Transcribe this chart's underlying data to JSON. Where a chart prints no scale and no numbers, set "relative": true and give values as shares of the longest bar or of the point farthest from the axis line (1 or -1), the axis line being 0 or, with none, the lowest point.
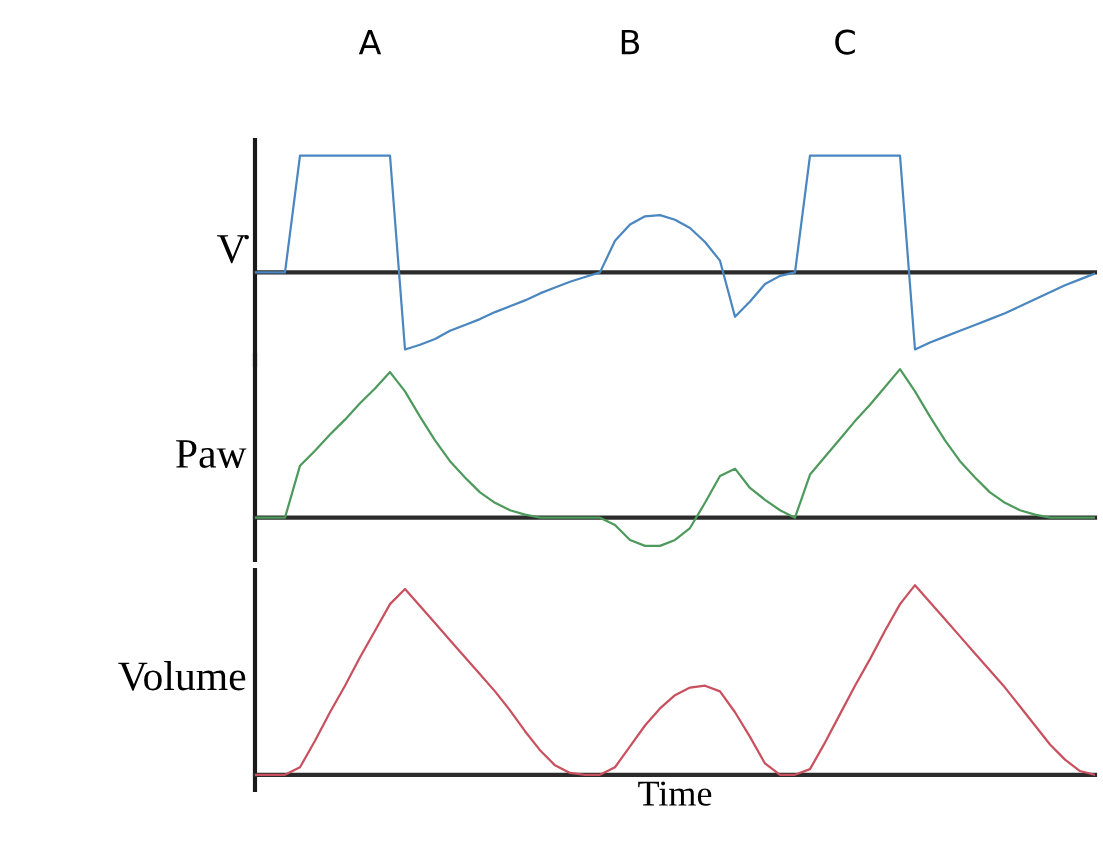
{
  "chart_data": [
    {
      "type": "line",
      "ylabel": "V̇",
      "relative": true,
      "tick_labels": false,
      "annotations": [
        "A",
        "B",
        "C"
      ],
      "categories": [
        null,
        null,
        null,
        null,
        null,
        null,
        null,
        null,
        null,
        null,
        null,
        null,
        null,
        null,
        null,
        null,
        null,
        null,
        null,
        null,
        null,
        null,
        null,
        null,
        null,
        null,
        null,
        null,
        null,
        null,
        null,
        null,
        null,
        null,
        null,
        null,
        null,
        null,
        null,
        null,
        null,
        null,
        null,
        null,
        null,
        null,
        null,
        null,
        null,
        null,
        null,
        null,
        null,
        null,
        null,
        null,
        null
      ],
      "series": [
        {
          "color": "#4a86c0",
          "values": [
            0,
            0,
            0,
            1,
            1,
            1,
            1,
            1,
            1,
            1,
            -0.66,
            -0.62,
            -0.57,
            -0.5,
            -0.45,
            -0.4,
            -0.34,
            -0.29,
            -0.24,
            -0.18,
            -0.13,
            -0.08,
            -0.04,
            0,
            0.27,
            0.41,
            0.48,
            0.49,
            0.45,
            0.38,
            0.26,
            0.1,
            -0.38,
            -0.25,
            -0.1,
            -0.03,
            0,
            1,
            1,
            1,
            1,
            1,
            1,
            1,
            -0.66,
            -0.6,
            -0.55,
            -0.5,
            -0.45,
            -0.4,
            -0.35,
            -0.29,
            -0.23,
            -0.17,
            -0.11,
            -0.06,
            -0.01
          ]
        }
      ]
    },
    {
      "type": "line",
      "ylabel": "Paw",
      "relative": true,
      "tick_labels": false,
      "categories": [
        null,
        null,
        null,
        null,
        null,
        null,
        null,
        null,
        null,
        null,
        null,
        null,
        null,
        null,
        null,
        null,
        null,
        null,
        null,
        null,
        null,
        null,
        null,
        null,
        null,
        null,
        null,
        null,
        null,
        null,
        null,
        null,
        null,
        null,
        null,
        null,
        null,
        null,
        null,
        null,
        null,
        null,
        null,
        null,
        null,
        null,
        null,
        null,
        null,
        null,
        null,
        null,
        null,
        null,
        null,
        null,
        null
      ],
      "series": [
        {
          "color": "#4e9a5c",
          "values": [
            0,
            0,
            0,
            0.35,
            0.45,
            0.56,
            0.66,
            0.77,
            0.87,
            0.98,
            0.85,
            0.68,
            0.52,
            0.38,
            0.27,
            0.17,
            0.1,
            0.05,
            0.02,
            0,
            0,
            0,
            0,
            0,
            -0.05,
            -0.15,
            -0.19,
            -0.19,
            -0.15,
            -0.07,
            0.1,
            0.28,
            0.33,
            0.2,
            0.12,
            0.05,
            0,
            0.29,
            0.41,
            0.53,
            0.65,
            0.76,
            0.88,
            1,
            0.85,
            0.68,
            0.52,
            0.38,
            0.27,
            0.17,
            0.1,
            0.05,
            0.02,
            0,
            0,
            0,
            0
          ]
        }
      ]
    },
    {
      "type": "line",
      "ylabel": "Volume",
      "xlabel": "Time",
      "relative": true,
      "tick_labels": false,
      "categories": [
        null,
        null,
        null,
        null,
        null,
        null,
        null,
        null,
        null,
        null,
        null,
        null,
        null,
        null,
        null,
        null,
        null,
        null,
        null,
        null,
        null,
        null,
        null,
        null,
        null,
        null,
        null,
        null,
        null,
        null,
        null,
        null,
        null,
        null,
        null,
        null,
        null,
        null,
        null,
        null,
        null,
        null,
        null,
        null,
        null,
        null,
        null,
        null,
        null,
        null,
        null,
        null,
        null,
        null,
        null,
        null,
        null
      ],
      "series": [
        {
          "color": "#c9505e",
          "values": [
            0,
            0,
            0,
            0.04,
            0.18,
            0.33,
            0.47,
            0.62,
            0.76,
            0.9,
            0.98,
            0.89,
            0.8,
            0.71,
            0.62,
            0.53,
            0.44,
            0.34,
            0.23,
            0.13,
            0.05,
            0.01,
            0,
            0,
            0.04,
            0.15,
            0.26,
            0.35,
            0.42,
            0.46,
            0.47,
            0.44,
            0.33,
            0.2,
            0.06,
            0,
            0,
            0.03,
            0.17,
            0.32,
            0.47,
            0.61,
            0.76,
            0.9,
            1,
            0.91,
            0.82,
            0.73,
            0.64,
            0.55,
            0.46,
            0.36,
            0.26,
            0.16,
            0.08,
            0.02,
            0
          ]
        }
      ]
    }
  ]
}
